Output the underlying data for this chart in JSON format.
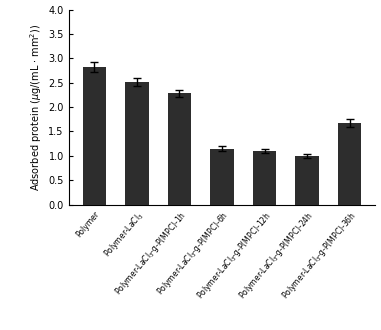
{
  "categories": [
    "Polymer",
    "Polymer-LaCl$_3$",
    "Polymer-LaCl$_3$-g-P(MPC)-1h",
    "Polymer-LaCl$_3$-g-P(MPC)-6h",
    "Polymer-LaCl$_3$-g-P(MPC)-12h",
    "Polymer-LaCl$_3$-g-P(MPC)-24h",
    "Polymer-LaCl$_3$-g-P(MPC)-36h"
  ],
  "values": [
    2.82,
    2.52,
    2.28,
    1.15,
    1.1,
    1.0,
    1.67
  ],
  "errors": [
    0.1,
    0.08,
    0.07,
    0.05,
    0.05,
    0.04,
    0.08
  ],
  "bar_color": "#2d2d2d",
  "ylabel": "Adsorbed protein ($\\mu$g/(mL $\\cdot$ mm$^2$))",
  "ylim": [
    0.0,
    4.0
  ],
  "yticks": [
    0.0,
    0.5,
    1.0,
    1.5,
    2.0,
    2.5,
    3.0,
    3.5,
    4.0
  ],
  "bg_color": "#ffffff",
  "fig_width": 3.81,
  "fig_height": 3.3,
  "dpi": 100
}
